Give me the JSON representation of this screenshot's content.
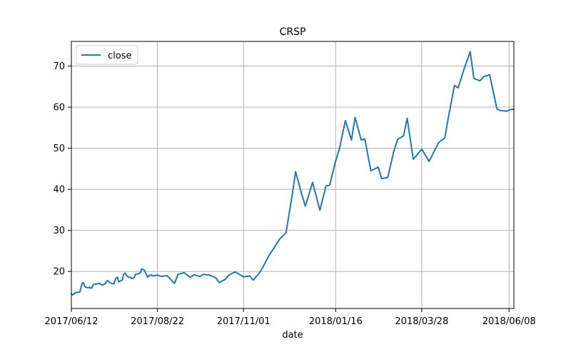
{
  "chart_data": {
    "type": "line",
    "title": "CRSP",
    "xlabel": "date",
    "ylabel": "",
    "x_tick_labels": [
      "2017/06/12",
      "2017/08/22",
      "2017/11/01",
      "2018/01/16",
      "2018/03/28",
      "2018/06/08"
    ],
    "y_ticks": [
      20,
      30,
      40,
      50,
      60,
      70
    ],
    "ylim": [
      11,
      76
    ],
    "grid": true,
    "legend_position": "upper-left",
    "line_color": "#1f77b4",
    "series": [
      {
        "name": "close",
        "x": [
          "2017/06/12",
          "2017/06/13",
          "2017/06/14",
          "2017/06/15",
          "2017/06/16",
          "2017/06/19",
          "2017/06/20",
          "2017/06/21",
          "2017/06/22",
          "2017/06/23",
          "2017/06/26",
          "2017/06/27",
          "2017/06/28",
          "2017/06/29",
          "2017/06/30",
          "2017/07/03",
          "2017/07/05",
          "2017/07/06",
          "2017/07/07",
          "2017/07/10",
          "2017/07/11",
          "2017/07/12",
          "2017/07/13",
          "2017/07/14",
          "2017/07/17",
          "2017/07/18",
          "2017/07/19",
          "2017/07/20",
          "2017/07/21",
          "2017/07/24",
          "2017/07/25",
          "2017/07/26",
          "2017/07/27",
          "2017/07/28",
          "2017/07/31",
          "2017/08/01",
          "2017/08/02",
          "2017/08/03",
          "2017/08/04",
          "2017/08/07",
          "2017/08/08",
          "2017/08/09",
          "2017/08/10",
          "2017/08/11",
          "2017/08/14",
          "2017/08/15",
          "2017/08/16",
          "2017/08/17",
          "2017/08/18",
          "2017/08/22",
          "2017/08/25",
          "2017/08/30",
          "2017/09/05",
          "2017/09/08",
          "2017/09/13",
          "2017/09/18",
          "2017/09/21",
          "2017/09/26",
          "2017/09/29",
          "2017/10/04",
          "2017/10/09",
          "2017/10/12",
          "2017/10/17",
          "2017/10/20",
          "2017/10/25",
          "2017/11/01",
          "2017/11/06",
          "2017/11/09",
          "2017/11/14",
          "2017/11/17",
          "2017/11/22",
          "2017/11/28",
          "2017/12/01",
          "2017/12/06",
          "2017/12/11",
          "2017/12/14",
          "2017/12/19",
          "2017/12/22",
          "2017/12/28",
          "2018/01/03",
          "2018/01/08",
          "2018/01/11",
          "2018/01/16",
          "2018/01/19",
          "2018/01/24",
          "2018/01/29",
          "2018/02/01",
          "2018/02/06",
          "2018/02/09",
          "2018/02/14",
          "2018/02/20",
          "2018/02/23",
          "2018/02/28",
          "2018/03/05",
          "2018/03/08",
          "2018/03/13",
          "2018/03/16",
          "2018/03/21",
          "2018/03/28",
          "2018/04/03",
          "2018/04/06",
          "2018/04/11",
          "2018/04/16",
          "2018/04/19",
          "2018/04/24",
          "2018/04/27",
          "2018/05/02",
          "2018/05/07",
          "2018/05/10",
          "2018/05/15",
          "2018/05/18",
          "2018/05/23",
          "2018/05/29",
          "2018/06/01",
          "2018/06/06",
          "2018/06/08",
          "2018/06/11",
          "2018/06/12"
        ],
        "values": [
          14.6,
          14.3,
          14.5,
          14.7,
          14.9,
          15.0,
          16.2,
          17.2,
          17.3,
          16.3,
          16.0,
          16.2,
          15.9,
          16.1,
          16.8,
          17.0,
          17.1,
          16.9,
          16.7,
          17.0,
          17.6,
          17.8,
          17.5,
          17.2,
          17.0,
          17.8,
          18.4,
          18.6,
          17.5,
          17.9,
          19.2,
          19.6,
          19.3,
          18.8,
          18.5,
          18.3,
          18.4,
          18.6,
          19.3,
          19.5,
          19.8,
          20.6,
          20.5,
          20.4,
          18.6,
          19.0,
          19.1,
          19.2,
          18.9,
          19.1,
          18.8,
          19.0,
          17.1,
          19.3,
          19.7,
          18.6,
          19.2,
          18.8,
          19.3,
          19.1,
          18.5,
          17.3,
          18.1,
          19.1,
          19.9,
          18.7,
          18.9,
          17.9,
          19.6,
          21.1,
          23.9,
          26.6,
          28.0,
          29.4,
          38.4,
          44.3,
          38.8,
          35.9,
          41.7,
          34.9,
          40.8,
          41.0,
          46.9,
          49.8,
          56.7,
          52.0,
          57.5,
          52.0,
          52.3,
          44.5,
          45.4,
          42.6,
          42.9,
          49.3,
          52.1,
          53.0,
          57.3,
          47.3,
          49.8,
          46.8,
          48.5,
          51.4,
          52.5,
          57.6,
          65.3,
          64.7,
          69.4,
          73.5,
          67.0,
          66.4,
          67.4,
          67.9,
          59.6,
          59.2,
          59.0,
          59.3,
          59.5,
          59.4
        ]
      }
    ]
  }
}
